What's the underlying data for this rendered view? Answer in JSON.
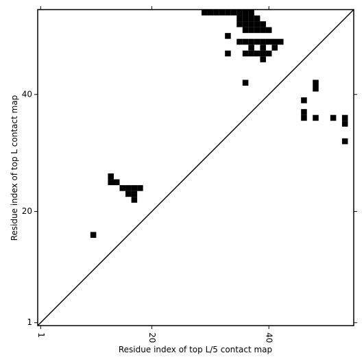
{
  "chart_data": {
    "type": "scatter",
    "marker": "square",
    "color": "#000000",
    "xlabel": "Residue index of top L/5 contact map",
    "ylabel": "Residue index of top L contact map",
    "xlim": [
      0.5,
      54.5
    ],
    "ylim": [
      0.5,
      54.5
    ],
    "xticks": [
      1,
      20,
      40
    ],
    "yticks": [
      1,
      20,
      40
    ],
    "x": [
      29,
      30,
      31,
      32,
      33,
      34,
      35,
      36,
      37,
      35,
      36,
      37,
      38,
      35,
      36,
      37,
      38,
      39,
      36,
      37,
      38,
      39,
      40,
      33,
      35,
      36,
      37,
      38,
      39,
      40,
      41,
      42,
      37,
      39,
      41,
      33,
      36,
      37,
      38,
      39,
      40,
      39,
      36,
      48,
      48,
      46,
      46,
      46,
      48,
      51,
      53,
      53,
      53,
      13,
      13,
      14,
      15,
      16,
      17,
      18,
      16,
      17,
      17,
      10
    ],
    "y": [
      54,
      54,
      54,
      54,
      54,
      54,
      54,
      54,
      54,
      53,
      53,
      53,
      53,
      52,
      52,
      52,
      52,
      52,
      51,
      51,
      51,
      51,
      51,
      50,
      49,
      49,
      49,
      49,
      49,
      49,
      49,
      49,
      48,
      48,
      48,
      47,
      47,
      47,
      47,
      47,
      47,
      46,
      42,
      42,
      41,
      39,
      37,
      36,
      36,
      36,
      36,
      35,
      32,
      26,
      25,
      25,
      24,
      24,
      24,
      24,
      23,
      23,
      22,
      16
    ]
  }
}
